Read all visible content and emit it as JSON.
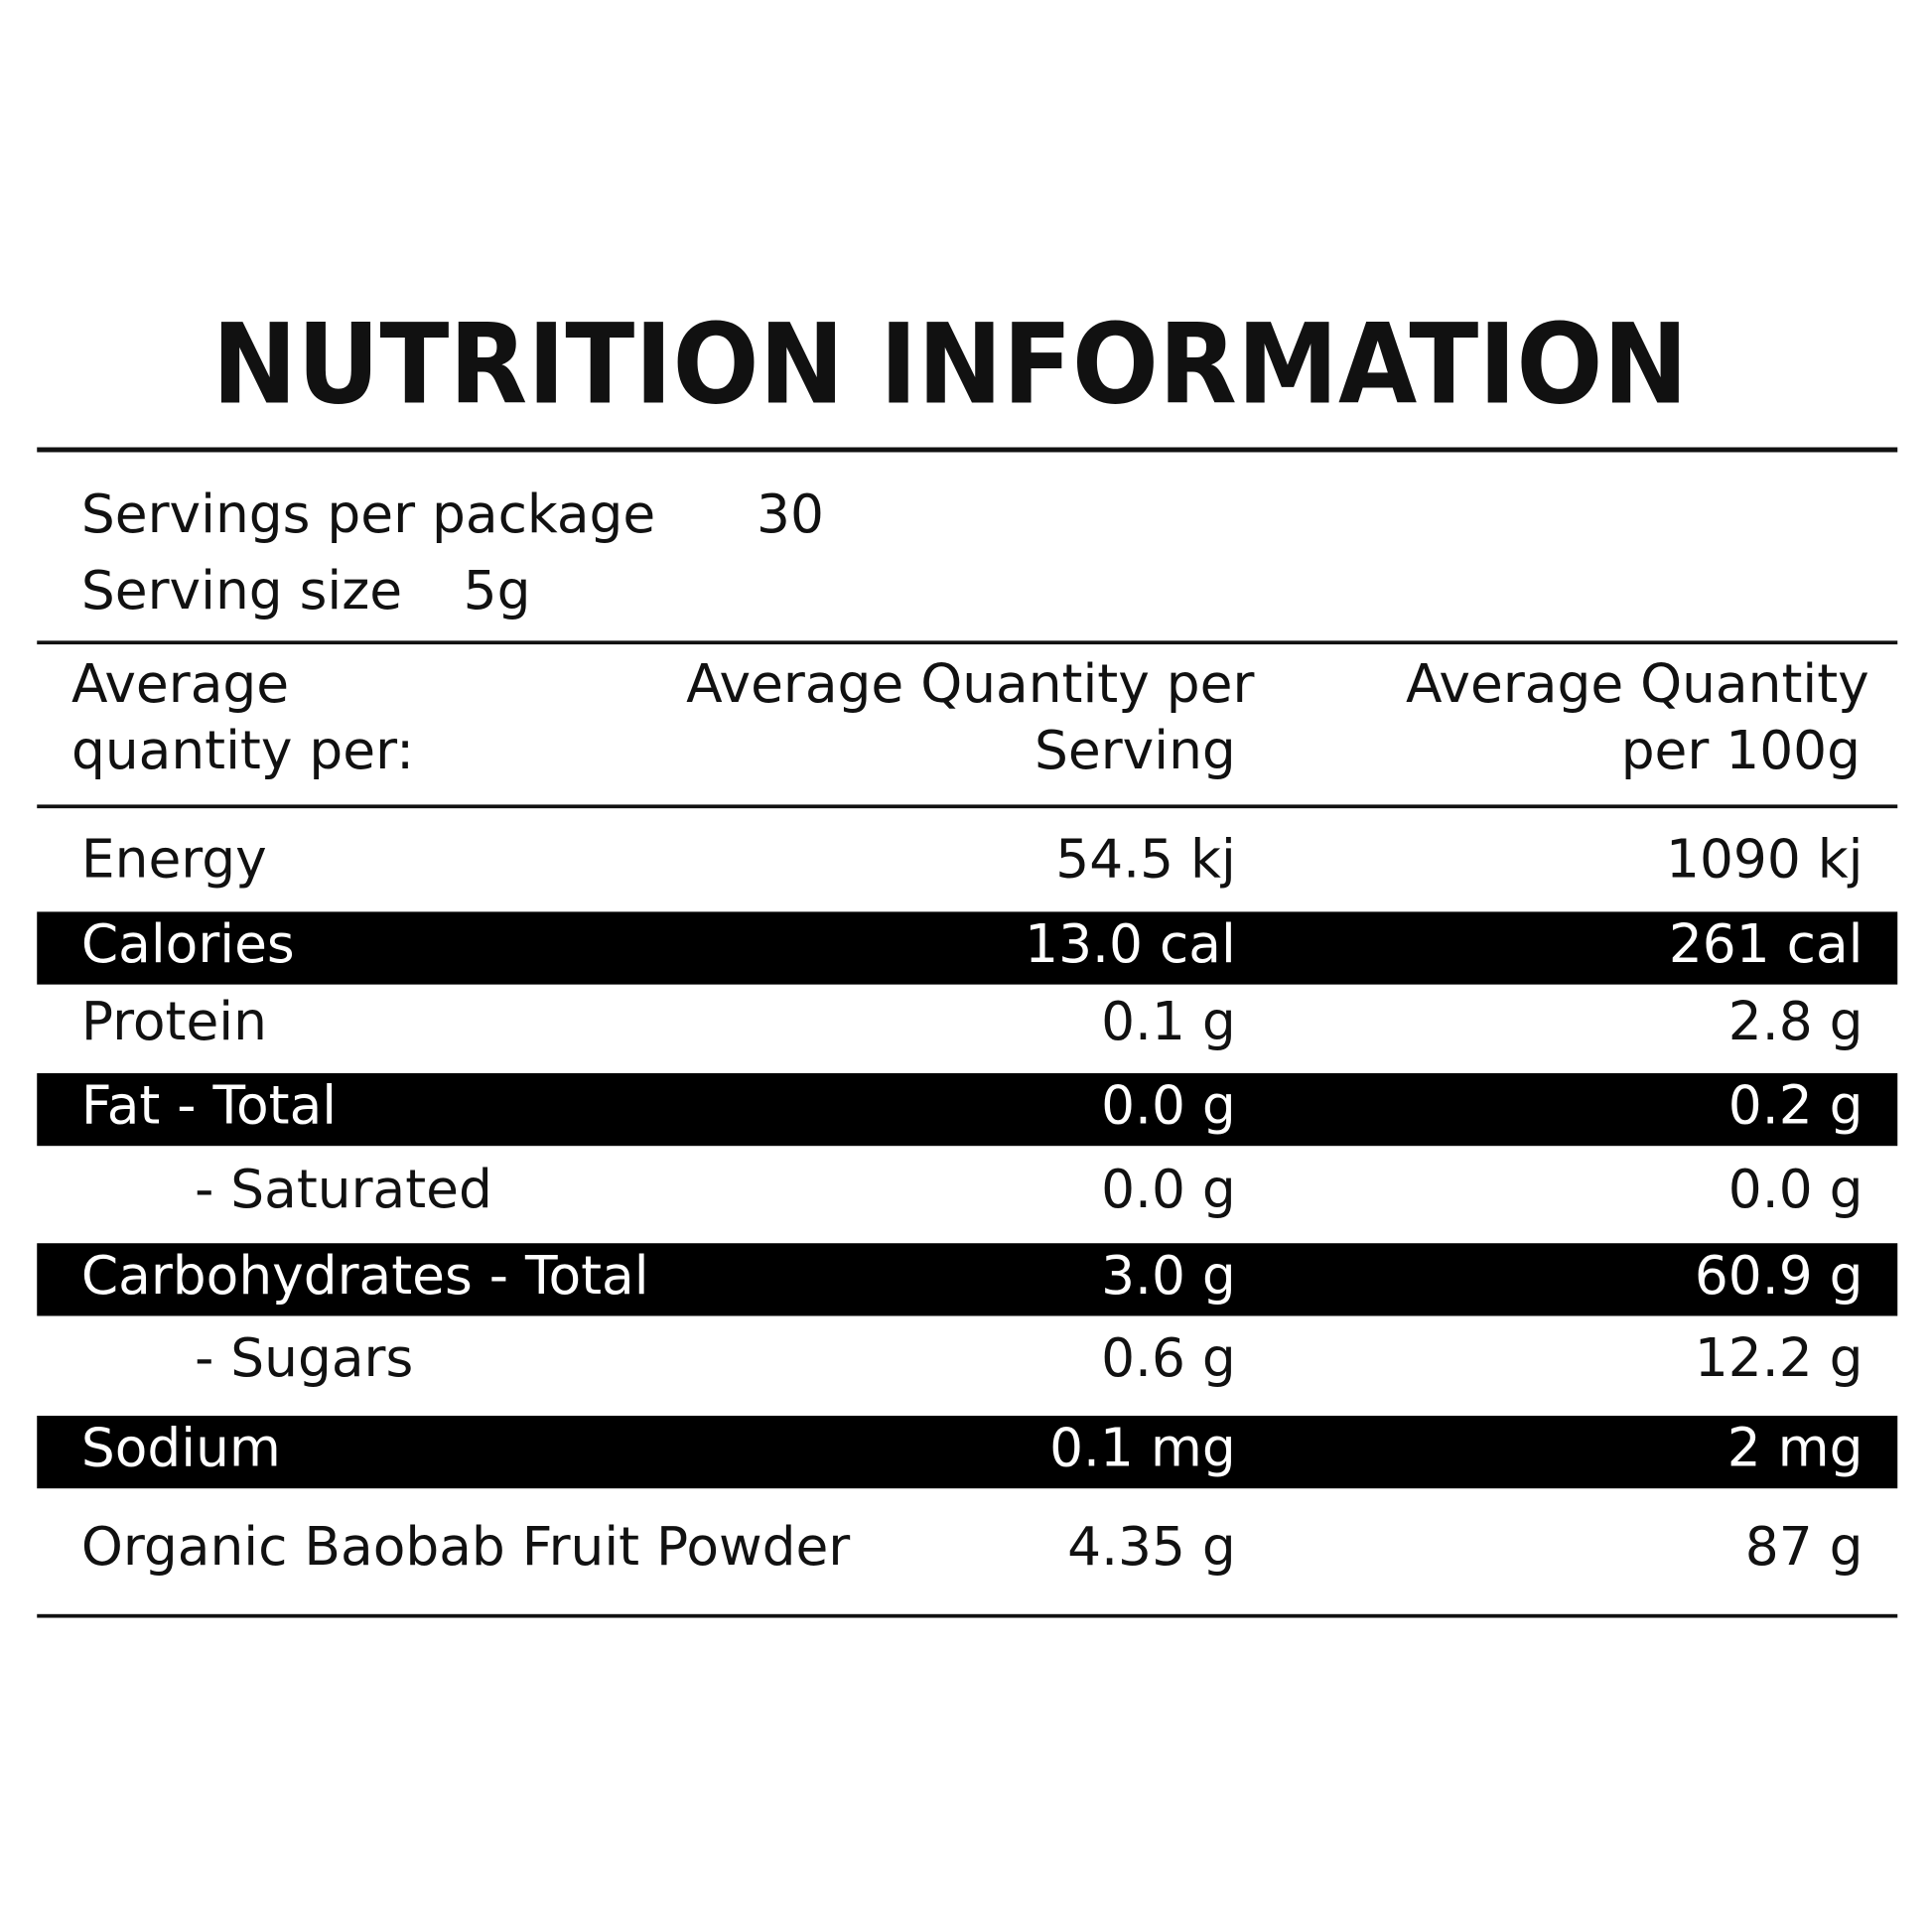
{
  "title": "NUTRITION INFORMATION",
  "servings": [
    {
      "label": "Servings per package",
      "value": "30"
    },
    {
      "label": "Serving size",
      "value": "5g"
    }
  ],
  "table": {
    "columns": [
      [
        "Average",
        "quantity per:"
      ],
      [
        "Average Quantity per",
        "Serving"
      ],
      [
        "Average Quantity",
        "per 100g"
      ]
    ],
    "rows": [
      {
        "label": "Energy",
        "per_serving": "54.5 kj",
        "per_100g": "1090 kj",
        "highlighted": false,
        "indent": false
      },
      {
        "label": "Calories",
        "per_serving": "13.0 cal",
        "per_100g": "261 cal",
        "highlighted": true,
        "indent": false
      },
      {
        "label": "Protein",
        "per_serving": "0.1 g",
        "per_100g": "2.8 g",
        "highlighted": false,
        "indent": false
      },
      {
        "label": "Fat - Total",
        "per_serving": "0.0 g",
        "per_100g": "0.2 g",
        "highlighted": true,
        "indent": false
      },
      {
        "label": "- Saturated",
        "per_serving": "0.0 g",
        "per_100g": "0.0 g",
        "highlighted": false,
        "indent": true
      },
      {
        "label": "Carbohydrates - Total",
        "per_serving": "3.0 g",
        "per_100g": "60.9 g",
        "highlighted": true,
        "indent": false
      },
      {
        "label": "- Sugars",
        "per_serving": "0.6 g",
        "per_100g": "12.2 g",
        "highlighted": false,
        "indent": true
      },
      {
        "label": "Sodium",
        "per_serving": "0.1 mg",
        "per_100g": "2 mg",
        "highlighted": true,
        "indent": false
      },
      {
        "label": "Organic Baobab Fruit Powder",
        "per_serving": "4.35 g",
        "per_100g": "87 g",
        "highlighted": false,
        "indent": false
      }
    ]
  }
}
